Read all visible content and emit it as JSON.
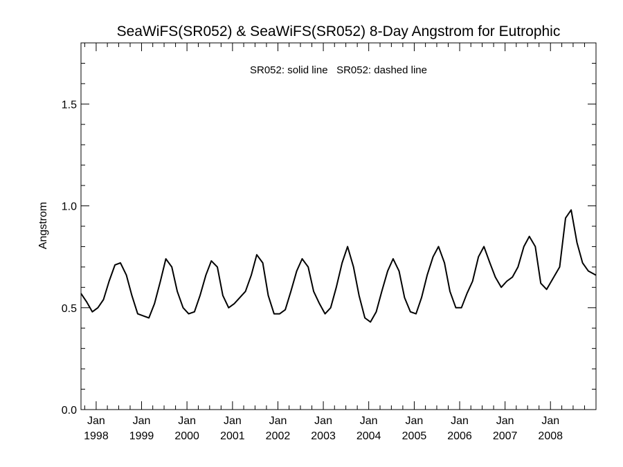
{
  "chart_data": {
    "type": "line",
    "title": "SeaWiFS(SR052) & SeaWiFS(SR052) 8-Day Angstrom for Eutrophic",
    "legend_text": "SR052: solid line   SR052: dashed line",
    "ylabel": "Angstrom",
    "xlabel": "",
    "ylim": [
      0.0,
      1.8
    ],
    "xlim": [
      "1997-09-01",
      "2009-01-01"
    ],
    "y_ticks": [
      {
        "value": 0.0,
        "label": "0.0"
      },
      {
        "value": 0.5,
        "label": "0.5"
      },
      {
        "value": 1.0,
        "label": "1.0"
      },
      {
        "value": 1.5,
        "label": "1.5"
      }
    ],
    "x_ticks": [
      {
        "date": "1998-01-01",
        "month": "Jan",
        "year": "1998"
      },
      {
        "date": "1999-01-01",
        "month": "Jan",
        "year": "1999"
      },
      {
        "date": "2000-01-01",
        "month": "Jan",
        "year": "2000"
      },
      {
        "date": "2001-01-01",
        "month": "Jan",
        "year": "2001"
      },
      {
        "date": "2002-01-01",
        "month": "Jan",
        "year": "2002"
      },
      {
        "date": "2003-01-01",
        "month": "Jan",
        "year": "2003"
      },
      {
        "date": "2004-01-01",
        "month": "Jan",
        "year": "2004"
      },
      {
        "date": "2005-01-01",
        "month": "Jan",
        "year": "2005"
      },
      {
        "date": "2006-01-01",
        "month": "Jan",
        "year": "2006"
      },
      {
        "date": "2007-01-01",
        "month": "Jan",
        "year": "2007"
      },
      {
        "date": "2008-01-01",
        "month": "Jan",
        "year": "2008"
      }
    ],
    "series": [
      {
        "style": "solid",
        "x": [
          "1997-09-01",
          "1997-10-15",
          "1997-12-01",
          "1998-01-15",
          "1998-03-01",
          "1998-04-15",
          "1998-06-01",
          "1998-07-15",
          "1998-09-01",
          "1998-10-15",
          "1998-12-01",
          "1999-01-15",
          "1999-03-01",
          "1999-04-15",
          "1999-06-01",
          "1999-07-15",
          "1999-09-01",
          "1999-10-15",
          "1999-12-01",
          "2000-01-15",
          "2000-03-01",
          "2000-04-15",
          "2000-06-01",
          "2000-07-15",
          "2000-09-01",
          "2000-10-15",
          "2000-12-01",
          "2001-01-15",
          "2001-03-01",
          "2001-04-15",
          "2001-06-01",
          "2001-07-15",
          "2001-09-01",
          "2001-10-15",
          "2001-12-01",
          "2002-01-15",
          "2002-03-01",
          "2002-04-15",
          "2002-06-01",
          "2002-07-15",
          "2002-09-01",
          "2002-10-15",
          "2002-12-01",
          "2003-01-15",
          "2003-03-01",
          "2003-04-15",
          "2003-06-01",
          "2003-07-15",
          "2003-09-01",
          "2003-10-15",
          "2003-12-01",
          "2004-01-15",
          "2004-03-01",
          "2004-04-15",
          "2004-06-01",
          "2004-07-15",
          "2004-09-01",
          "2004-10-15",
          "2004-12-01",
          "2005-01-15",
          "2005-03-01",
          "2005-04-15",
          "2005-06-01",
          "2005-07-15",
          "2005-09-01",
          "2005-10-15",
          "2005-12-01",
          "2006-01-15",
          "2006-03-01",
          "2006-04-15",
          "2006-06-01",
          "2006-07-15",
          "2006-09-01",
          "2006-10-15",
          "2006-12-01",
          "2007-01-15",
          "2007-03-01",
          "2007-04-15",
          "2007-06-01",
          "2007-07-15",
          "2007-09-01",
          "2007-10-15",
          "2007-12-01",
          "2008-03-15",
          "2008-05-01",
          "2008-06-15",
          "2008-08-01",
          "2008-09-15",
          "2008-11-01",
          "2009-01-01"
        ],
        "y": [
          0.57,
          0.53,
          0.48,
          0.5,
          0.54,
          0.63,
          0.71,
          0.72,
          0.66,
          0.56,
          0.47,
          0.46,
          0.45,
          0.52,
          0.63,
          0.74,
          0.7,
          0.58,
          0.5,
          0.47,
          0.48,
          0.56,
          0.66,
          0.73,
          0.7,
          0.56,
          0.5,
          0.52,
          0.55,
          0.58,
          0.66,
          0.76,
          0.72,
          0.56,
          0.47,
          0.47,
          0.49,
          0.58,
          0.68,
          0.74,
          0.7,
          0.58,
          0.52,
          0.47,
          0.5,
          0.6,
          0.72,
          0.8,
          0.7,
          0.56,
          0.45,
          0.43,
          0.48,
          0.58,
          0.68,
          0.74,
          0.68,
          0.55,
          0.48,
          0.47,
          0.55,
          0.66,
          0.75,
          0.8,
          0.72,
          0.58,
          0.5,
          0.5,
          0.57,
          0.63,
          0.75,
          0.8,
          0.72,
          0.65,
          0.6,
          0.63,
          0.65,
          0.7,
          0.8,
          0.85,
          0.8,
          0.62,
          0.59,
          0.7,
          0.94,
          0.98,
          0.82,
          0.72,
          0.68,
          0.66
        ]
      }
    ],
    "grid": false,
    "legend_placement": "top-center"
  }
}
